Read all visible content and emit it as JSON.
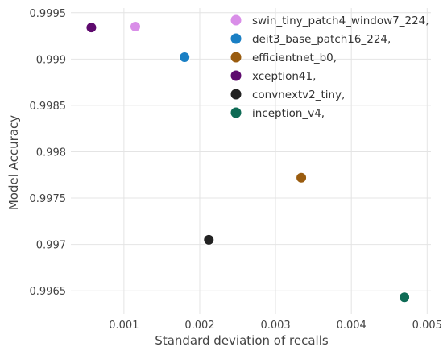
{
  "chart_data": {
    "type": "scatter",
    "xlabel": "Standard deviation of recalls",
    "ylabel": "Model Accuracy",
    "xlim": [
      0.0003,
      0.00505
    ],
    "ylim": [
      0.99625,
      0.99955
    ],
    "x_ticks": [
      0.001,
      0.002,
      0.003,
      0.004,
      0.005
    ],
    "x_tick_labels": [
      "0.001",
      "0.002",
      "0.003",
      "0.004",
      "0.005"
    ],
    "y_ticks": [
      0.9965,
      0.997,
      0.9975,
      0.998,
      0.9985,
      0.999,
      0.9995
    ],
    "y_tick_labels": [
      "0.9965",
      "0.997",
      "0.9975",
      "0.998",
      "0.9985",
      "0.999",
      "0.9995"
    ],
    "grid": true,
    "legend_position": "top-right",
    "series": [
      {
        "name": "swin_tiny_patch4_window7_224,",
        "color": "#d98ee8",
        "x": 0.00115,
        "y": 0.99935
      },
      {
        "name": "deit3_base_patch16_224,",
        "color": "#1a7fc4",
        "x": 0.0018,
        "y": 0.99902
      },
      {
        "name": "efficientnet_b0,",
        "color": "#9a5c0f",
        "x": 0.00334,
        "y": 0.99772
      },
      {
        "name": "xception41,",
        "color": "#5e0a6e",
        "x": 0.00057,
        "y": 0.99934
      },
      {
        "name": "convnextv2_tiny,",
        "color": "#222222",
        "x": 0.00212,
        "y": 0.99705
      },
      {
        "name": "inception_v4,",
        "color": "#0e6b55",
        "x": 0.0047,
        "y": 0.99643
      }
    ]
  }
}
